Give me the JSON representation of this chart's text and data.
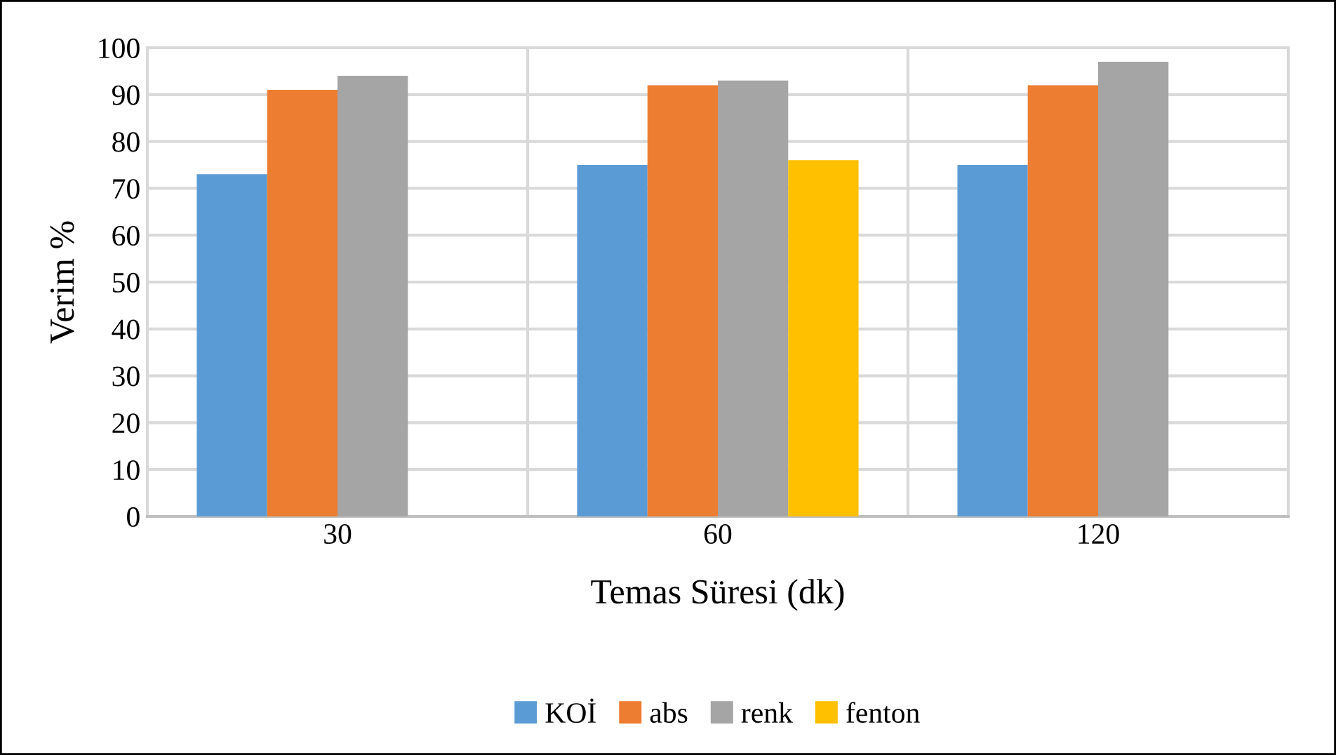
{
  "chart_data": {
    "type": "bar",
    "xlabel": "Temas Süresi (dk)",
    "ylabel": "Verim %",
    "categories": [
      "30",
      "60",
      "120"
    ],
    "series": [
      {
        "name": "KOİ",
        "color": "#5b9bd5",
        "values": [
          73,
          75,
          75
        ]
      },
      {
        "name": "abs",
        "color": "#ed7d31",
        "values": [
          91,
          92,
          92
        ]
      },
      {
        "name": "renk",
        "color": "#a5a5a5",
        "values": [
          94,
          93,
          97
        ]
      },
      {
        "name": "fenton",
        "color": "#ffc000",
        "values": [
          null,
          76,
          null
        ]
      }
    ],
    "ylim": [
      0,
      100
    ],
    "yticks": [
      0,
      10,
      20,
      30,
      40,
      50,
      60,
      70,
      80,
      90,
      100
    ],
    "grid": true,
    "legend": "bottom"
  }
}
